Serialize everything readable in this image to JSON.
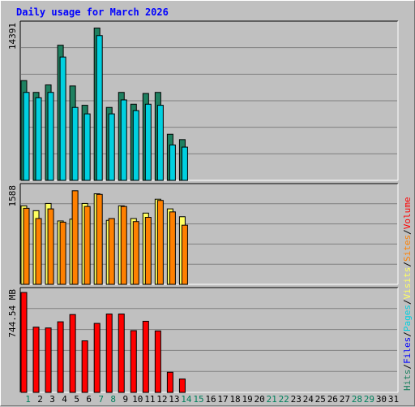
{
  "chart_data": {
    "type": "bar",
    "title": "Daily usage for March 2026",
    "days": [
      "1",
      "2",
      "3",
      "4",
      "5",
      "6",
      "7",
      "8",
      "9",
      "10",
      "11",
      "12",
      "13",
      "14",
      "15",
      "16",
      "17",
      "18",
      "19",
      "20",
      "21",
      "22",
      "23",
      "24",
      "25",
      "26",
      "27",
      "28",
      "29",
      "30",
      "31"
    ],
    "weekend_days": [
      "1",
      "7",
      "8",
      "14",
      "15",
      "21",
      "22",
      "28",
      "29"
    ],
    "colors": {
      "hits": "#1e8060",
      "files": "#0000ff",
      "pages": "#00d0e0",
      "visits": "#ffff60",
      "sites": "#ff8000",
      "volume": "#ff0000",
      "weekday_label": "#000000",
      "weekend_label": "#00805c"
    },
    "panels": [
      {
        "id": "hits-files",
        "ymax": 14391,
        "ymax_label": "14391",
        "series": [
          {
            "name": "Hits",
            "color": "#1e8060",
            "values": [
              9300,
              8200,
              8900,
              12600,
              8800,
              7000,
              14200,
              6800,
              8200,
              7100,
              8100,
              8200,
              4300,
              3800
            ]
          },
          {
            "name": "Files",
            "color": "#00d0e0",
            "values": [
              8200,
              7700,
              8200,
              11500,
              6800,
              6200,
              13500,
              6200,
              7500,
              6500,
              7100,
              7000,
              3300,
              3100
            ]
          }
        ]
      },
      {
        "id": "visits-sites",
        "ymax": 1588,
        "ymax_label": "1588",
        "series": [
          {
            "name": "Visits",
            "color": "#ffff60",
            "values": [
              1300,
              1220,
              1340,
              1050,
              1080,
              1340,
              1500,
              1060,
              1300,
              1090,
              1180,
              1410,
              1250,
              1120
            ]
          },
          {
            "name": "Sites",
            "color": "#ff8000",
            "values": [
              1260,
              1090,
              1250,
              1030,
              1550,
              1290,
              1490,
              1090,
              1290,
              1040,
              1110,
              1390,
              1200,
              980
            ]
          }
        ]
      },
      {
        "id": "volume",
        "ymax": 744.54,
        "ymax_label": "744.54 MB",
        "series": [
          {
            "name": "Volume",
            "color": "#ff0000",
            "values": [
              744.54,
              486,
              480,
              526,
              580,
              384,
              514,
              584,
              584,
              460,
              530,
              458,
              150,
              100
            ]
          }
        ]
      }
    ],
    "legend_right": [
      {
        "text": "Hits",
        "color": "#1e8060"
      },
      {
        "text": "/",
        "color": "#000000"
      },
      {
        "text": "Files",
        "color": "#0000ff"
      },
      {
        "text": "/",
        "color": "#000000"
      },
      {
        "text": "Pages",
        "color": "#00d0e0"
      },
      {
        "text": "/",
        "color": "#000000"
      },
      {
        "text": "Visits",
        "color": "#ffff60"
      },
      {
        "text": "/",
        "color": "#000000"
      },
      {
        "text": "Sites",
        "color": "#ff8000"
      },
      {
        "text": "/",
        "color": "#000000"
      },
      {
        "text": "Volume",
        "color": "#ff0000"
      }
    ],
    "grid": true
  }
}
